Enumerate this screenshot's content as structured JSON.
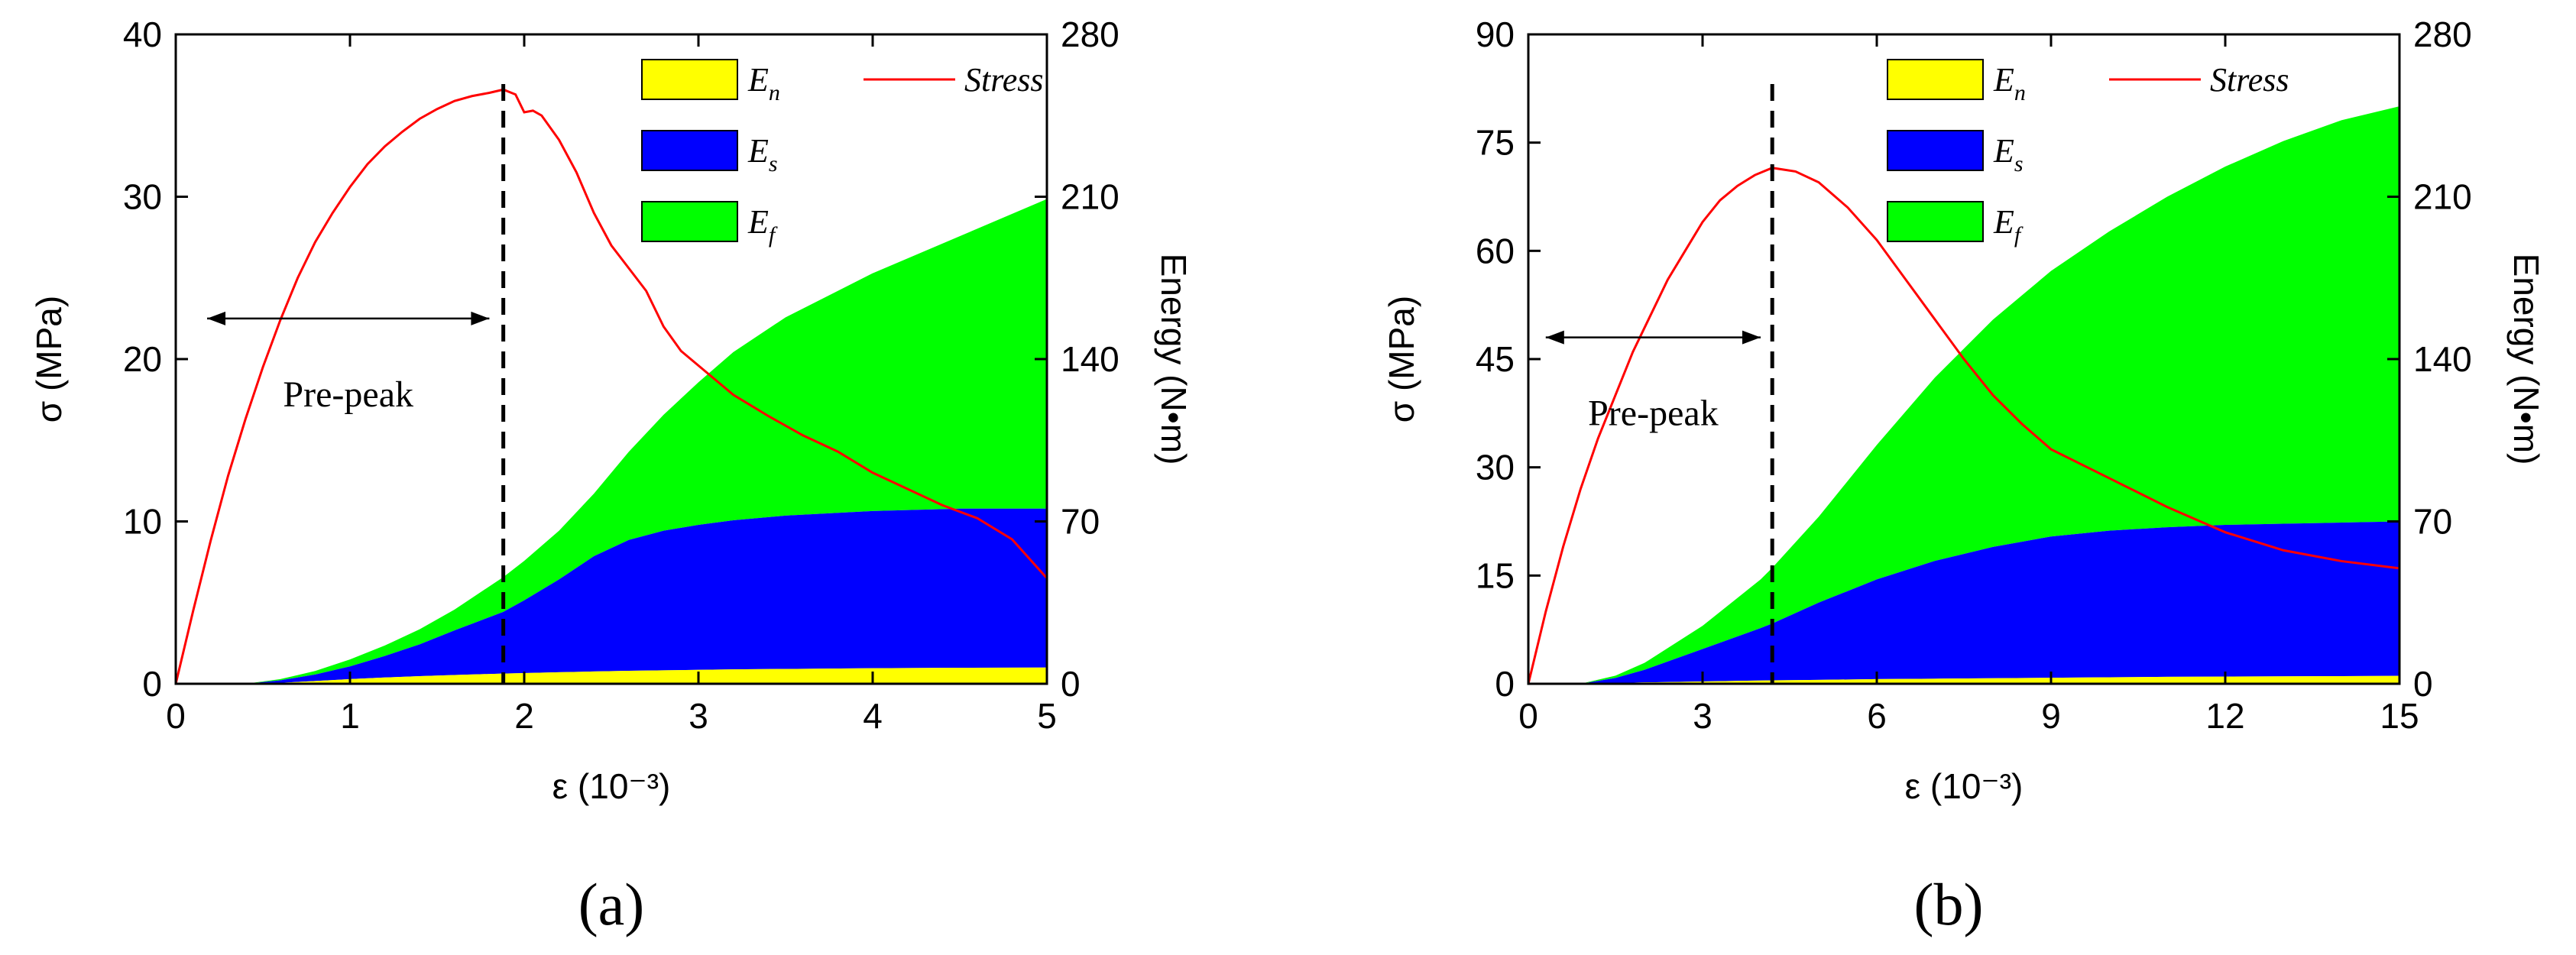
{
  "chart_data": [
    {
      "type": "area",
      "panel_label": "(a)",
      "xlabel": "ε (10⁻³)",
      "ylabel_left": "σ (MPa)",
      "ylabel_right": "Energy (N•m)",
      "xlim": [
        0,
        5
      ],
      "ylim_left": [
        0,
        40
      ],
      "ylim_right": [
        0,
        280
      ],
      "xticks": [
        0,
        1,
        2,
        3,
        4,
        5
      ],
      "yticks_left": [
        0,
        10,
        20,
        30,
        40
      ],
      "yticks_right": [
        0,
        70,
        140,
        210,
        280
      ],
      "legend": {
        "position": "top-right",
        "items": [
          {
            "key": "En",
            "base": "E",
            "sub": "n",
            "color": "#ffff00"
          },
          {
            "key": "Es",
            "base": "E",
            "sub": "s",
            "color": "#0000ff"
          },
          {
            "key": "Ef",
            "base": "E",
            "sub": "f",
            "color": "#00ff00"
          },
          {
            "key": "stress",
            "label": "Stress",
            "color": "#ff0000"
          }
        ]
      },
      "peak_strain": 1.88,
      "annotation": {
        "text": "Pre-peak",
        "x_from": 0.18,
        "x_to": 1.8,
        "y": 22.5
      },
      "stress": {
        "x": [
          0,
          0.1,
          0.2,
          0.3,
          0.4,
          0.5,
          0.6,
          0.7,
          0.8,
          0.9,
          1.0,
          1.1,
          1.2,
          1.3,
          1.4,
          1.5,
          1.6,
          1.7,
          1.8,
          1.88,
          1.95,
          2.0,
          2.05,
          2.1,
          2.2,
          2.3,
          2.4,
          2.5,
          2.6,
          2.7,
          2.8,
          2.9,
          3.0,
          3.2,
          3.4,
          3.6,
          3.8,
          4.0,
          4.2,
          4.4,
          4.6,
          4.8,
          5.0
        ],
        "y": [
          0,
          4.5,
          8.8,
          12.8,
          16.3,
          19.5,
          22.4,
          25.0,
          27.2,
          29.0,
          30.6,
          32.0,
          33.1,
          34.0,
          34.8,
          35.4,
          35.9,
          36.2,
          36.4,
          36.6,
          36.3,
          35.2,
          35.3,
          35.0,
          33.5,
          31.5,
          29.0,
          27.0,
          25.6,
          24.2,
          22.0,
          20.5,
          19.6,
          17.8,
          16.5,
          15.3,
          14.3,
          13.0,
          12.0,
          11.0,
          10.2,
          8.9,
          6.5
        ]
      },
      "energy": {
        "x": [
          0,
          0.4,
          0.6,
          0.8,
          1.0,
          1.2,
          1.4,
          1.6,
          1.88,
          2.0,
          2.2,
          2.4,
          2.6,
          2.8,
          3.0,
          3.2,
          3.5,
          4.0,
          4.5,
          5.0
        ],
        "En": [
          0,
          0,
          0.4,
          1.2,
          2.0,
          2.7,
          3.3,
          3.8,
          4.4,
          4.6,
          5.0,
          5.3,
          5.6,
          5.8,
          6.0,
          6.2,
          6.4,
          6.7,
          6.9,
          7.0
        ],
        "Es": [
          0,
          0,
          1.5,
          4.0,
          7.5,
          12.0,
          17.0,
          23.0,
          31.0,
          36.0,
          45.0,
          55.0,
          62.0,
          66.0,
          68.5,
          70.5,
          72.5,
          74.5,
          75.5,
          75.5
        ],
        "total": [
          0,
          0,
          2.0,
          5.5,
          10.5,
          16.5,
          23.5,
          32.0,
          46.0,
          53.0,
          66.0,
          82.0,
          100.0,
          116.0,
          130.0,
          143.0,
          158.0,
          177.0,
          193.0,
          209.0
        ]
      }
    },
    {
      "type": "area",
      "panel_label": "(b)",
      "xlabel": "ε (10⁻³)",
      "ylabel_left": "σ (MPa)",
      "ylabel_right": "Energy (N•m)",
      "xlim": [
        0,
        15
      ],
      "ylim_left": [
        0,
        90
      ],
      "ylim_right": [
        0,
        280
      ],
      "xticks": [
        0,
        3,
        6,
        9,
        12,
        15
      ],
      "yticks_left": [
        0,
        15,
        30,
        45,
        60,
        75,
        90
      ],
      "yticks_right": [
        0,
        70,
        140,
        210,
        280
      ],
      "legend": {
        "position": "top-center",
        "items": [
          {
            "key": "En",
            "base": "E",
            "sub": "n",
            "color": "#ffff00"
          },
          {
            "key": "Es",
            "base": "E",
            "sub": "s",
            "color": "#0000ff"
          },
          {
            "key": "Ef",
            "base": "E",
            "sub": "f",
            "color": "#00ff00"
          },
          {
            "key": "stress",
            "label": "Stress",
            "color": "#ff0000"
          }
        ]
      },
      "peak_strain": 4.2,
      "annotation": {
        "text": "Pre-peak",
        "x_from": 0.3,
        "x_to": 4.0,
        "y": 48
      },
      "stress": {
        "x": [
          0,
          0.3,
          0.6,
          0.9,
          1.2,
          1.5,
          1.8,
          2.1,
          2.4,
          2.7,
          3.0,
          3.3,
          3.6,
          3.9,
          4.2,
          4.6,
          5.0,
          5.5,
          6.0,
          6.5,
          7.0,
          7.5,
          8.0,
          8.5,
          9.0,
          10.0,
          11.0,
          12.0,
          13.0,
          14.0,
          15.0
        ],
        "y": [
          0,
          10,
          19,
          27,
          34,
          40,
          46,
          51,
          56,
          60,
          64,
          67,
          69,
          70.5,
          71.5,
          71,
          69.5,
          66,
          61.5,
          56,
          50.5,
          45,
          40,
          36,
          32.5,
          28.5,
          24.5,
          21,
          18.5,
          17,
          16
        ]
      },
      "energy": {
        "x": [
          0,
          0.9,
          1.5,
          2.0,
          3.0,
          4.0,
          4.2,
          5.0,
          6.0,
          7.0,
          8.0,
          9.0,
          10.0,
          11.0,
          12.0,
          13.0,
          14.0,
          15.0
        ],
        "En": [
          0,
          0,
          0.3,
          0.6,
          1.0,
          1.4,
          1.5,
          1.7,
          2.0,
          2.2,
          2.4,
          2.6,
          2.8,
          3.0,
          3.1,
          3.2,
          3.3,
          3.4
        ],
        "Es": [
          0,
          0,
          2.5,
          6.0,
          15.0,
          24.0,
          26.0,
          35.0,
          45.0,
          53.0,
          59.0,
          63.5,
          66.0,
          67.5,
          68.5,
          69.0,
          69.5,
          70.0
        ],
        "total": [
          0,
          0,
          3.5,
          9.0,
          25.0,
          45.0,
          50.0,
          72.0,
          103.0,
          132.0,
          157.0,
          178.0,
          195.0,
          210.0,
          223.0,
          234.0,
          243.0,
          249.0
        ]
      }
    }
  ]
}
